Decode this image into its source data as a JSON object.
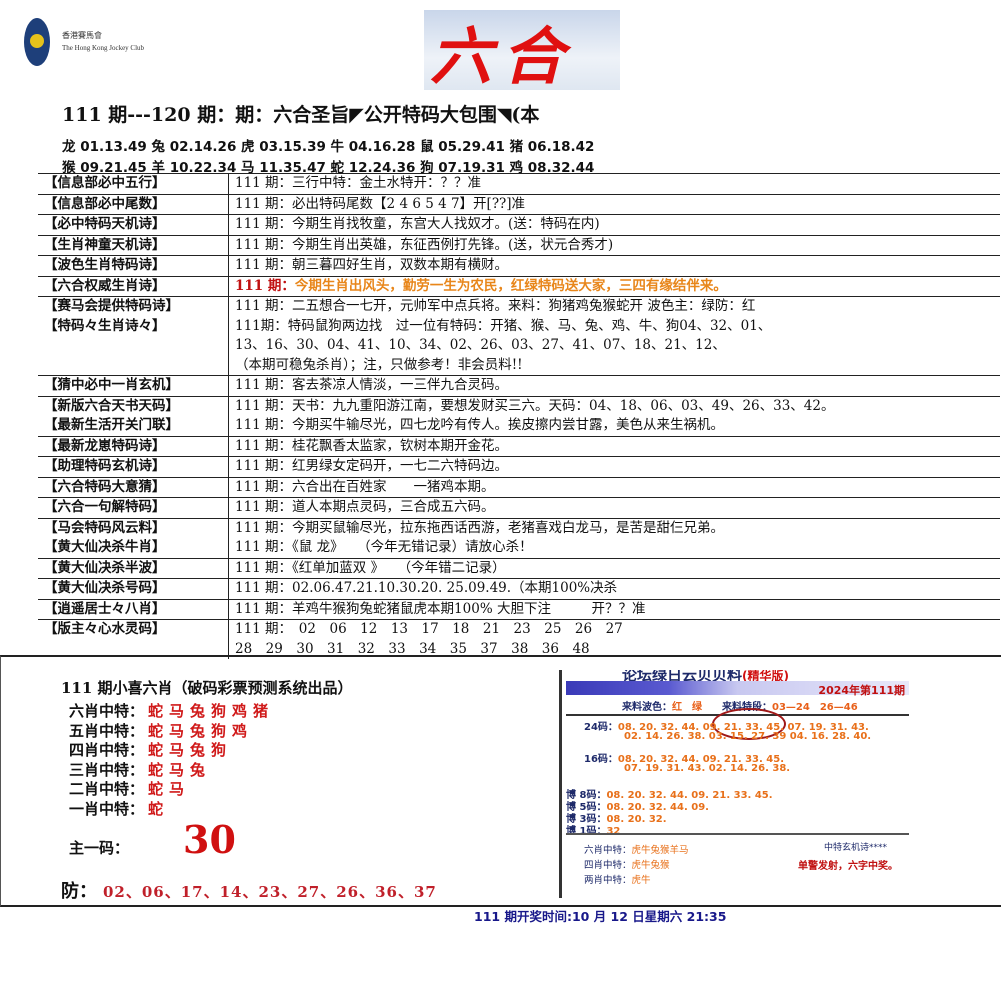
{
  "header": {
    "logo_cn": "香港賽馬會",
    "logo_en": "The Hong Kong Jockey Club",
    "banner_text": "六合",
    "headline": "111 期---120 期：期：六合圣旨◤公开特码大包围◥(本",
    "zodiac_line1": "龙 01.13.49 兔 02.14.26 虎 03.15.39 牛 04.16.28 鼠 05.29.41 猪 06.18.42",
    "zodiac_line2": "猴 09.21.45 羊 10.22.34 马 11.35.47 蛇 12.24.36 狗 07.19.31 鸡 08.32.44"
  },
  "table": {
    "rows": [
      {
        "labels": [
          "【信息部必中五行】"
        ],
        "lines": [
          "111 期：三行中特：金土水特开：？？准"
        ]
      },
      {
        "labels": [
          "【信息部必中尾数】"
        ],
        "lines": [
          "111 期：必出特码尾数【2 4 6 5 4 7】开[??]准"
        ]
      },
      {
        "labels": [
          "【必中特码天机诗】"
        ],
        "lines": [
          "111 期：今期生肖找牧童，东宫大人找奴才。(送：特码在内)"
        ]
      },
      {
        "labels": [
          "【生肖神童天机诗】"
        ],
        "lines": [
          "111 期：今期生肖出英雄，东征西例打先锋。(送，状元合秀才)"
        ]
      },
      {
        "labels": [
          "【波色生肖特码诗】"
        ],
        "lines": [
          "111 期：朝三暮四好生肖，双数本期有横财。"
        ]
      },
      {
        "labels": [
          "【六合权威生肖诗】"
        ],
        "highlight": true,
        "prefix": "111 期：",
        "lines": [
          "今期生肖出风头，勤劳一生为农民，红绿特码送大家，三四有缘结伴来。"
        ]
      },
      {
        "labels": [
          "【赛马会提供特码诗】",
          "【特码々生肖诗々】"
        ],
        "lines": [
          "111 期：二五想合一七开，元帅军中点兵将。来料：狗猪鸡兔猴蛇开 波色主：绿防：红",
          "111期：特码鼠狗两边找　过一位有特码：开猪、猴、马、兔、鸡、牛、狗04、32、01、",
          "13、16、30、04、41、10、34、02、26、03、27、41、07、18、21、12、",
          "（本期可稳兔杀肖）；注，只做参考！非会员料!!"
        ]
      },
      {
        "labels": [
          "【猜中必中一肖玄机】"
        ],
        "lines": [
          "111 期：客去茶凉人情淡，一三伴九合灵码。"
        ]
      },
      {
        "labels": [
          "【新版六合天书天码】",
          "【最新生活开关门联】"
        ],
        "lines": [
          "111 期：天书：九九重阳游江南，要想发财买三六。天码：04、18、06、03、49、26、33、42。",
          "111 期：今期买牛输尽光，四七龙吟有传人。挨皮擦内尝甘露，美色从来生祸机。"
        ]
      },
      {
        "labels": [
          "【最新龙崽特码诗】"
        ],
        "lines": [
          "111 期：桂花飘香太监家，钦树本期开金花。"
        ]
      },
      {
        "labels": [
          "【助理特码玄机诗】"
        ],
        "lines": [
          "111 期：红男绿女定码开，一七二六特码边。"
        ]
      },
      {
        "labels": [
          "【六合特码大意猜】"
        ],
        "lines": [
          "111 期：六合出在百姓家　　一猪鸡本期。"
        ]
      },
      {
        "labels": [
          "【六合一句解特码】"
        ],
        "lines": [
          "111 期：道人本期点灵码，三合成五六码。"
        ]
      },
      {
        "labels": [
          "【马会特码风云料】",
          "【黄大仙决杀牛肖】"
        ],
        "lines": [
          "111 期：今期买鼠输尽光，拉东拖西话西游，老猪喜戏白龙马，是苦是甜仨兄弟。",
          "111 期：《鼠 龙》　　（今年无错记录）请放心杀！"
        ]
      },
      {
        "labels": [
          "【黄大仙决杀半波】"
        ],
        "lines": [
          "111 期：《红单加蓝双 》　　（今年错二记录）"
        ]
      },
      {
        "labels": [
          "【黄大仙决杀号码】"
        ],
        "lines": [
          "111 期：02.06.47.21.10.30.20. 25.09.49.（本期100%决杀"
        ]
      },
      {
        "labels": [
          "【逍遥居士々八肖】"
        ],
        "lines": [
          "111 期：羊鸡牛猴狗兔蛇猪鼠虎本期100% 大胆下注　　　开？？准"
        ]
      },
      {
        "labels": [
          "【版主々心水灵码】"
        ],
        "lines": [
          "111 期：　02　06　12　13　17　18　21　23　25　26　27",
          "28　29　30　31　32　33　34　35　37　38　36　48"
        ]
      }
    ]
  },
  "xiao_six": {
    "title": "111 期小喜六肖（破码彩票预测系统出品）",
    "rows": [
      {
        "label": "六肖中特：",
        "value": "蛇马兔狗鸡猪"
      },
      {
        "label": "五肖中特：",
        "value": "蛇马兔狗鸡"
      },
      {
        "label": "四肖中特：",
        "value": "蛇马兔狗"
      },
      {
        "label": "三肖中特：",
        "value": "蛇马兔"
      },
      {
        "label": "二肖中特：",
        "value": "蛇马"
      },
      {
        "label": "一肖中特：",
        "value": "蛇"
      }
    ],
    "one_code_label": "主一码：",
    "one_code_value": "30",
    "fang_label": "防：",
    "fang_value": "02、06、17、14、23、27、26、36、37"
  },
  "card": {
    "title": "论坛绿日云贝贝料",
    "edition": "(精华版)",
    "issue": "2024年第111期",
    "src_wave_label": "来料波色：",
    "src_wave_value": "红　绿",
    "src_seg_label": "来料特段：",
    "src_seg_value": "03—24　26—46",
    "codes": [
      {
        "label": "24码：",
        "lines": [
          "08. 20. 32. 44. 09. 21. 33. 45. 07. 19. 31. 43.",
          "02. 14. 26. 38. 03. 15. 27. 39  04. 16. 28. 40."
        ]
      },
      {
        "label": "16码：",
        "lines": [
          "08. 20. 32. 44. 09. 21. 33. 45.",
          "07. 19. 31. 43. 02. 14. 26. 38."
        ]
      },
      {
        "label": "博 8码：",
        "lines": [
          "08. 20. 32. 44. 09. 21. 33. 45."
        ]
      },
      {
        "label": "博 5码：",
        "lines": [
          "08. 20. 32. 44. 09."
        ]
      },
      {
        "label": "博 3码：",
        "lines": [
          "08. 20. 32."
        ]
      },
      {
        "label": "博 1码：",
        "lines": [
          "32"
        ]
      }
    ],
    "zodiac": [
      {
        "label": "六肖中特：",
        "value": "虎牛兔猴羊马"
      },
      {
        "label": "四肖中特：",
        "value": "虎牛兔猴"
      },
      {
        "label": "两肖中特：",
        "value": "虎牛"
      }
    ],
    "poem_heading": "中特玄机诗****",
    "poem_line": "单警发射，六字中奖。"
  },
  "footer": {
    "draw_time": "111 期开奖时间:10 月 12 日星期六 21:35"
  },
  "colors": {
    "red": "#d01a1a",
    "orange": "#e8861a",
    "navy": "#18188a"
  }
}
